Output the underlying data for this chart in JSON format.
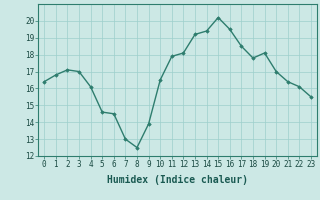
{
  "x": [
    0,
    1,
    2,
    3,
    4,
    5,
    6,
    7,
    8,
    9,
    10,
    11,
    12,
    13,
    14,
    15,
    16,
    17,
    18,
    19,
    20,
    21,
    22,
    23
  ],
  "y": [
    16.4,
    16.8,
    17.1,
    17.0,
    16.1,
    14.6,
    14.5,
    13.0,
    12.5,
    13.9,
    16.5,
    17.9,
    18.1,
    19.2,
    19.4,
    20.2,
    19.5,
    18.5,
    17.8,
    18.1,
    17.0,
    16.4,
    16.1,
    15.5
  ],
  "line_color": "#2e7d6e",
  "marker": "D",
  "markersize": 1.8,
  "linewidth": 1.0,
  "bg_color": "#cce8e5",
  "grid_color": "#9ecfcc",
  "xlabel": "Humidex (Indice chaleur)",
  "ylim": [
    12,
    21
  ],
  "xlim": [
    -0.5,
    23.5
  ],
  "yticks": [
    12,
    13,
    14,
    15,
    16,
    17,
    18,
    19,
    20
  ],
  "xticks": [
    0,
    1,
    2,
    3,
    4,
    5,
    6,
    7,
    8,
    9,
    10,
    11,
    12,
    13,
    14,
    15,
    16,
    17,
    18,
    19,
    20,
    21,
    22,
    23
  ],
  "tick_fontsize": 5.5,
  "xlabel_fontsize": 7.0,
  "xlabel_fontweight": "bold"
}
